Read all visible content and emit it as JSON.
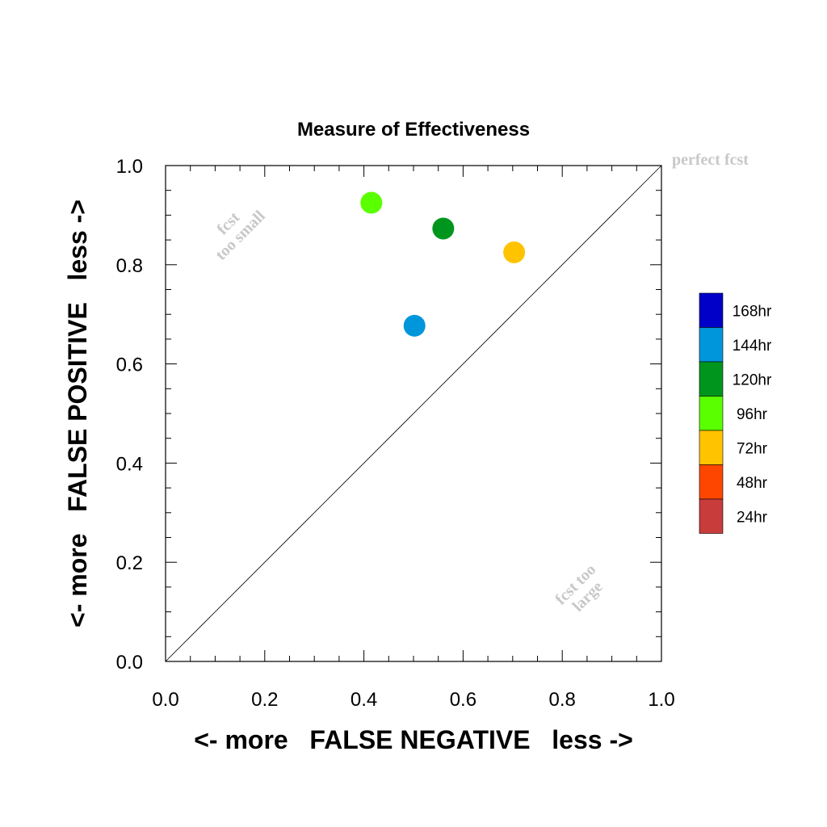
{
  "chart_data": {
    "type": "scatter",
    "title": "Measure of Effectiveness",
    "xlabel": "<- more   FALSE NEGATIVE   less ->",
    "ylabel": "<- more   FALSE POSITIVE   less ->",
    "xlim": [
      0.0,
      1.0
    ],
    "ylim": [
      0.0,
      1.0
    ],
    "x_ticks": [
      "0.0",
      "0.2",
      "0.4",
      "0.6",
      "0.8",
      "1.0"
    ],
    "y_ticks": [
      "0.0",
      "0.2",
      "0.4",
      "0.6",
      "0.8",
      "1.0"
    ],
    "grid": false,
    "reference_line": "y = x",
    "annotations": {
      "top_left": [
        "fcst",
        "too small"
      ],
      "bottom_right": [
        "fcst too",
        "large"
      ],
      "top_right": "perfect fcst"
    },
    "legend_position": "right",
    "legend": [
      {
        "label": "168hr",
        "color": "#0000c8"
      },
      {
        "label": "144hr",
        "color": "#0096dc"
      },
      {
        "label": "120hr",
        "color": "#00961e"
      },
      {
        "label": "96hr",
        "color": "#5aff00"
      },
      {
        "label": "72hr",
        "color": "#ffc300"
      },
      {
        "label": "48hr",
        "color": "#ff4600"
      },
      {
        "label": "24hr",
        "color": "#c83c3c"
      }
    ],
    "points": [
      {
        "series": "96hr",
        "x": 0.415,
        "y": 0.925,
        "color": "#5aff00"
      },
      {
        "series": "120hr",
        "x": 0.56,
        "y": 0.873,
        "color": "#00961e"
      },
      {
        "series": "72hr",
        "x": 0.703,
        "y": 0.825,
        "color": "#ffc300"
      },
      {
        "series": "144hr",
        "x": 0.502,
        "y": 0.677,
        "color": "#0096dc"
      }
    ]
  }
}
